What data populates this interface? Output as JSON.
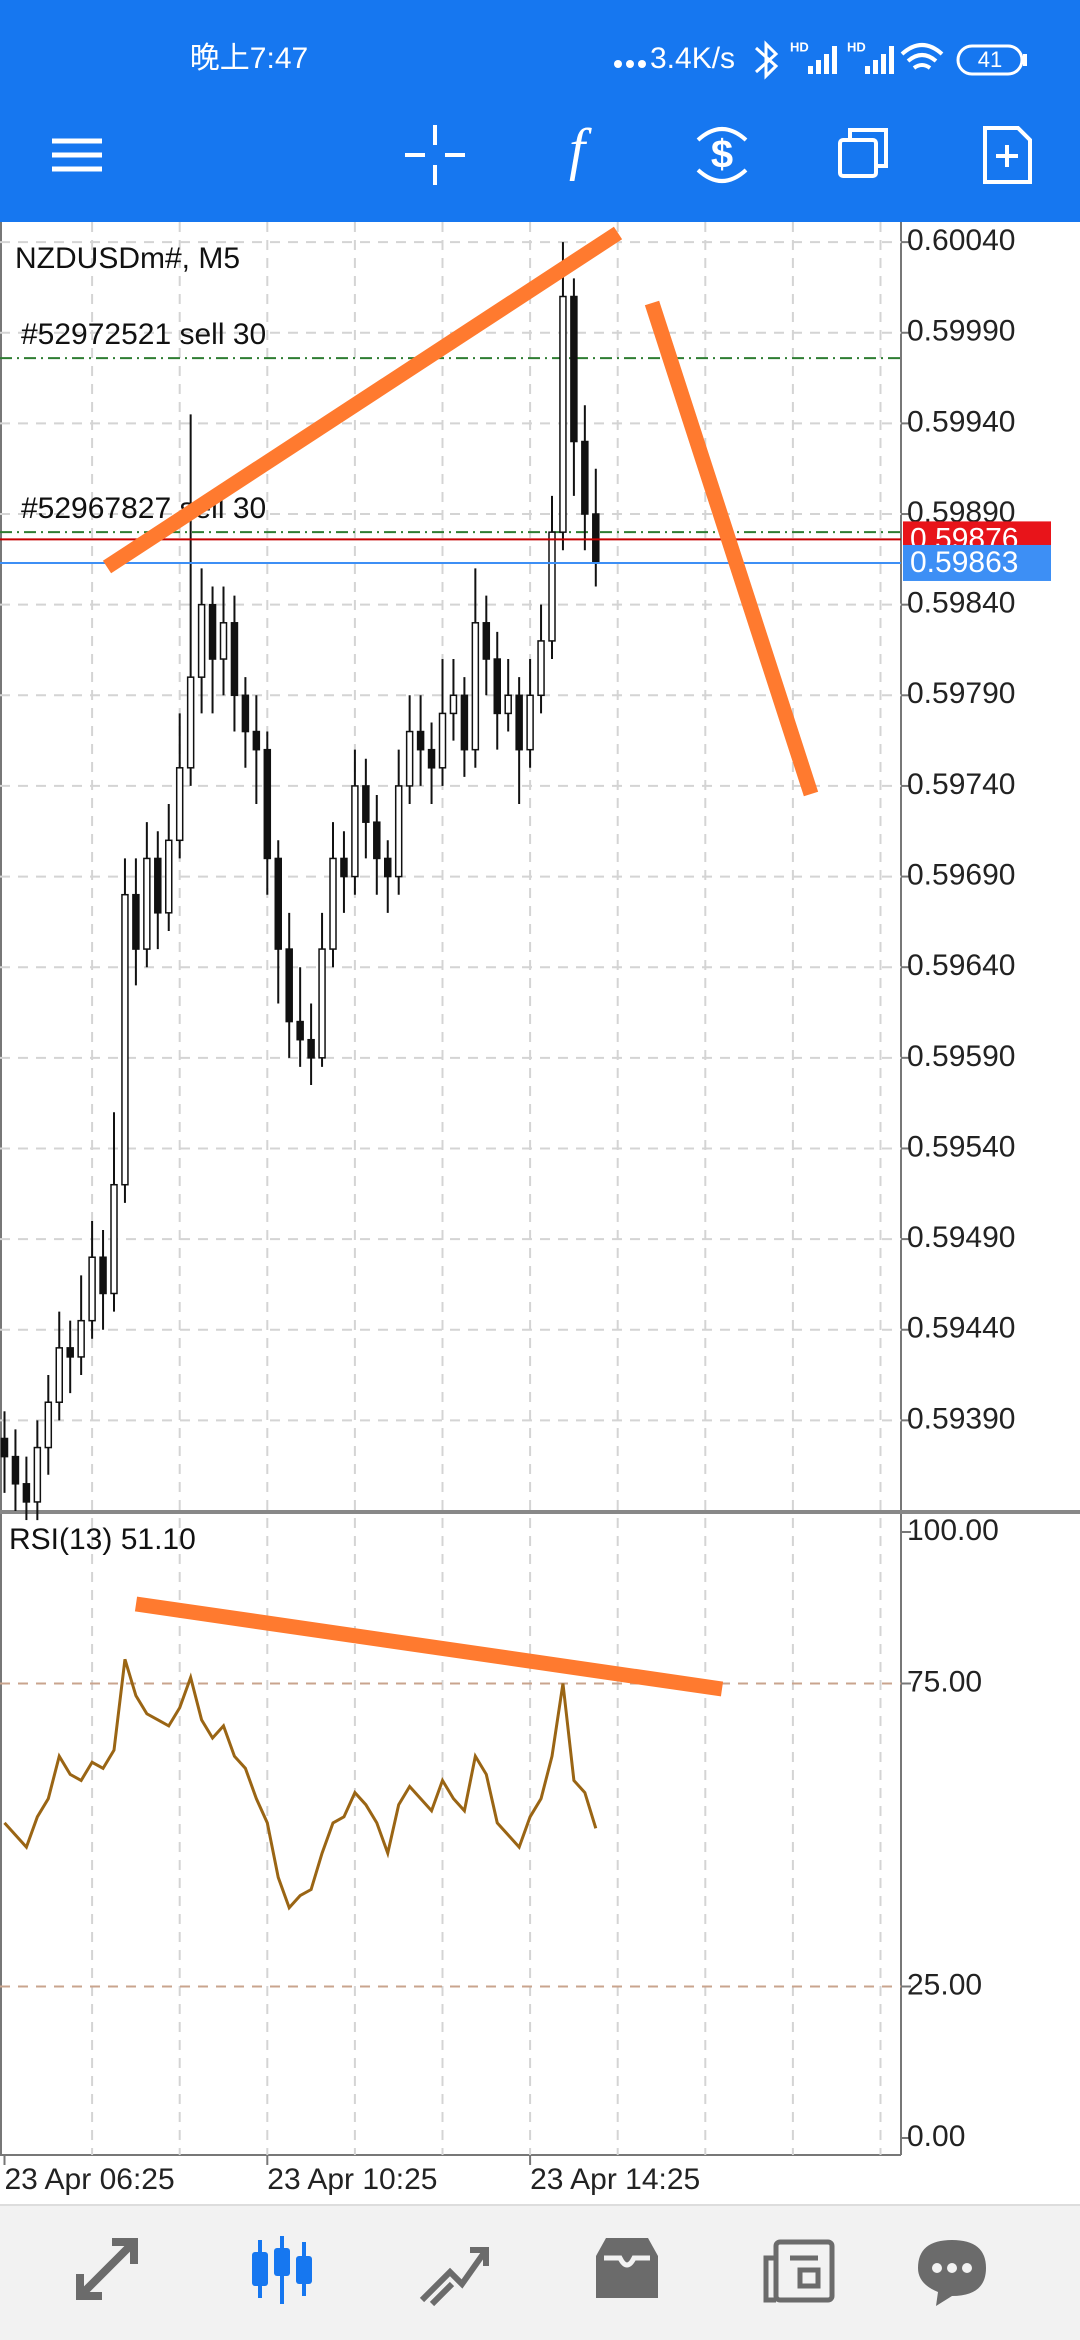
{
  "status_bar": {
    "time": "晚上7:47",
    "network": "3.4K/s",
    "hd": [
      "HD",
      "HD"
    ],
    "battery": "41"
  },
  "toolbar": {
    "indicator": "f"
  },
  "chart_data": {
    "type": "candlestick",
    "symbol": "NZDUSDm#, M5",
    "orders": [
      {
        "label": "#52972521 sell 30",
        "price": 0.59976
      },
      {
        "label": "#52967827 sell 30",
        "price": 0.5988
      }
    ],
    "bid": 0.59876,
    "ask": 0.59863,
    "ylim": [
      0.5934,
      0.6005
    ],
    "yticks": [
      {
        "value": 0.6004,
        "label": "0.60040"
      },
      {
        "value": 0.5999,
        "label": "0.59990"
      },
      {
        "value": 0.5994,
        "label": "0.59940"
      },
      {
        "value": 0.5989,
        "label": "0.59890"
      },
      {
        "value": 0.5984,
        "label": "0.59840"
      },
      {
        "value": 0.5979,
        "label": "0.59790"
      },
      {
        "value": 0.5974,
        "label": "0.59740"
      },
      {
        "value": 0.5969,
        "label": "0.59690"
      },
      {
        "value": 0.5964,
        "label": "0.59640"
      },
      {
        "value": 0.5959,
        "label": "0.59590"
      },
      {
        "value": 0.5954,
        "label": "0.59540"
      },
      {
        "value": 0.5949,
        "label": "0.59490"
      },
      {
        "value": 0.5944,
        "label": "0.59440"
      },
      {
        "value": 0.5939,
        "label": "0.59390"
      }
    ],
    "xticks": [
      {
        "value": 0,
        "label": "23 Apr 06:25"
      },
      {
        "value": 24,
        "label": "23 Apr 10:25"
      },
      {
        "value": 48,
        "label": "23 Apr 14:25"
      }
    ],
    "ohlc": [
      [
        0.5938,
        0.59395,
        0.5935,
        0.5937
      ],
      [
        0.5937,
        0.59385,
        0.5934,
        0.59355
      ],
      [
        0.59355,
        0.5937,
        0.59335,
        0.59345
      ],
      [
        0.59345,
        0.5939,
        0.59335,
        0.59375
      ],
      [
        0.59375,
        0.59415,
        0.5936,
        0.594
      ],
      [
        0.594,
        0.5945,
        0.5939,
        0.5943
      ],
      [
        0.5943,
        0.59445,
        0.59405,
        0.59425
      ],
      [
        0.59425,
        0.5947,
        0.59415,
        0.59445
      ],
      [
        0.59445,
        0.595,
        0.59435,
        0.5948
      ],
      [
        0.5948,
        0.59495,
        0.5944,
        0.5946
      ],
      [
        0.5946,
        0.5956,
        0.5945,
        0.5952
      ],
      [
        0.5952,
        0.597,
        0.5951,
        0.5968
      ],
      [
        0.5968,
        0.597,
        0.5963,
        0.5965
      ],
      [
        0.5965,
        0.5972,
        0.5964,
        0.597
      ],
      [
        0.597,
        0.59715,
        0.5965,
        0.5967
      ],
      [
        0.5967,
        0.5973,
        0.5966,
        0.5971
      ],
      [
        0.5971,
        0.5978,
        0.597,
        0.5975
      ],
      [
        0.5975,
        0.59945,
        0.5974,
        0.598
      ],
      [
        0.598,
        0.5986,
        0.5978,
        0.5984
      ],
      [
        0.5984,
        0.5985,
        0.5978,
        0.5981
      ],
      [
        0.5981,
        0.5985,
        0.5979,
        0.5983
      ],
      [
        0.5983,
        0.59845,
        0.5977,
        0.5979
      ],
      [
        0.5979,
        0.598,
        0.5975,
        0.5977
      ],
      [
        0.5977,
        0.5979,
        0.5973,
        0.5976
      ],
      [
        0.5976,
        0.5977,
        0.5968,
        0.597
      ],
      [
        0.597,
        0.5971,
        0.5962,
        0.5965
      ],
      [
        0.5965,
        0.5967,
        0.5959,
        0.5961
      ],
      [
        0.5961,
        0.5964,
        0.59585,
        0.596
      ],
      [
        0.596,
        0.5962,
        0.59575,
        0.5959
      ],
      [
        0.5959,
        0.5967,
        0.59585,
        0.5965
      ],
      [
        0.5965,
        0.5972,
        0.5964,
        0.597
      ],
      [
        0.597,
        0.59715,
        0.5967,
        0.5969
      ],
      [
        0.5969,
        0.5976,
        0.5968,
        0.5974
      ],
      [
        0.5974,
        0.59755,
        0.597,
        0.5972
      ],
      [
        0.5972,
        0.59735,
        0.5968,
        0.597
      ],
      [
        0.597,
        0.5971,
        0.5967,
        0.5969
      ],
      [
        0.5969,
        0.5976,
        0.5968,
        0.5974
      ],
      [
        0.5974,
        0.5979,
        0.5973,
        0.5977
      ],
      [
        0.5977,
        0.5979,
        0.5974,
        0.5976
      ],
      [
        0.5976,
        0.59775,
        0.5973,
        0.5975
      ],
      [
        0.5975,
        0.5981,
        0.5974,
        0.5978
      ],
      [
        0.5978,
        0.5981,
        0.59765,
        0.5979
      ],
      [
        0.5979,
        0.598,
        0.59745,
        0.5976
      ],
      [
        0.5976,
        0.5986,
        0.5975,
        0.5983
      ],
      [
        0.5983,
        0.59845,
        0.5979,
        0.5981
      ],
      [
        0.5981,
        0.59825,
        0.5976,
        0.5978
      ],
      [
        0.5978,
        0.5981,
        0.5977,
        0.5979
      ],
      [
        0.5979,
        0.598,
        0.5973,
        0.5976
      ],
      [
        0.5976,
        0.5981,
        0.5975,
        0.5979
      ],
      [
        0.5979,
        0.5984,
        0.5978,
        0.5982
      ],
      [
        0.5982,
        0.599,
        0.5981,
        0.5988
      ],
      [
        0.5988,
        0.6004,
        0.5987,
        0.6001
      ],
      [
        0.6001,
        0.6002,
        0.599,
        0.5993
      ],
      [
        0.5993,
        0.5995,
        0.5987,
        0.5989
      ],
      [
        0.5989,
        0.59915,
        0.5985,
        0.59863
      ]
    ],
    "rsi": {
      "label": "RSI(13) 51.10",
      "color": "#9a6514",
      "ylim": [
        0,
        100
      ],
      "yticks": [
        {
          "value": 100,
          "label": "100.00"
        },
        {
          "value": 75,
          "label": "75.00"
        },
        {
          "value": 25,
          "label": "25.00"
        },
        {
          "value": 0,
          "label": "0.00"
        }
      ],
      "levels": [
        75,
        25
      ],
      "values": [
        52,
        50,
        48,
        53,
        56,
        63,
        60,
        59,
        62,
        61,
        64,
        79,
        73,
        70,
        69,
        68,
        71,
        76,
        69,
        66,
        68,
        63,
        61,
        56,
        52,
        43,
        38,
        40,
        41,
        47,
        52,
        53,
        57,
        55,
        52,
        47,
        55,
        58,
        56,
        54,
        59,
        56,
        54,
        63,
        60,
        52,
        50,
        48,
        53,
        56,
        63,
        75,
        59,
        57,
        51.1
      ]
    }
  }
}
